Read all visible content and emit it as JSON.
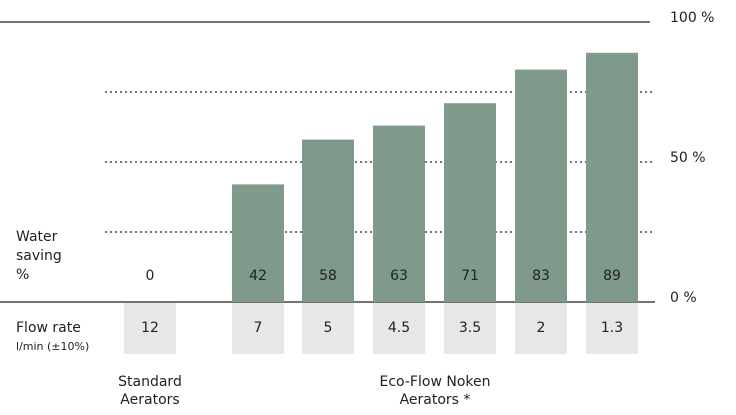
{
  "chart_data": {
    "type": "bar",
    "values": [
      0,
      42,
      58,
      63,
      71,
      83,
      89
    ],
    "value_axis_label": [
      "Water",
      "saving",
      "%"
    ],
    "flow_rate_label": "Flow rate",
    "flow_rate_unit": "l/min (±10%)",
    "flow_rates": [
      12,
      7,
      5,
      4.5,
      3.5,
      2,
      1.3
    ],
    "groups": [
      {
        "label": [
          "Standard",
          "Aerators"
        ],
        "columns": [
          0,
          0
        ]
      },
      {
        "label": [
          "Eco-Flow Noken",
          "Aerators *"
        ],
        "columns": [
          1,
          6
        ]
      }
    ],
    "color": "#7f9a8a",
    "flow_box_color": "#e6e8e6",
    "ylim": [
      0,
      100
    ],
    "yticks": [
      {
        "value": 0,
        "label": "0 %"
      },
      {
        "value": 50,
        "label": "50 %"
      },
      {
        "value": 100,
        "label": "100 %"
      }
    ],
    "minor_gridlines": [
      25,
      75
    ],
    "grid": true
  }
}
